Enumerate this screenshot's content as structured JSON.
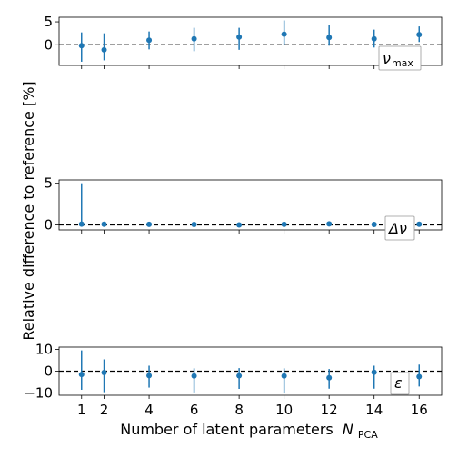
{
  "chart_data": {
    "type": "scatter",
    "ylabel": "Relative difference to reference [%]",
    "xlabel": "Number of latent parameters",
    "xlabel_symbol": "N",
    "xlabel_subscript": "PCA",
    "x": [
      1,
      2,
      4,
      6,
      8,
      10,
      12,
      14,
      16
    ],
    "xticks": [
      "1",
      "2",
      "4",
      "6",
      "8",
      "10",
      "12",
      "14",
      "16"
    ],
    "xlim": [
      0.0,
      17.0
    ],
    "reference_line": 0,
    "color": "#1f77b4",
    "panels": [
      {
        "legend_symbol": "ν",
        "legend_subscript": "max",
        "ylim": [
          -4.5,
          6.0
        ],
        "yticks": [
          0,
          5
        ],
        "yticklabels": [
          "0",
          "5"
        ],
        "y": [
          -0.2,
          -1.1,
          1.0,
          1.3,
          1.7,
          2.3,
          1.6,
          1.3,
          2.2
        ],
        "err_low": [
          3.5,
          2.3,
          2.0,
          2.7,
          2.8,
          2.4,
          1.8,
          1.9,
          1.6
        ],
        "err_high": [
          2.9,
          3.6,
          1.9,
          2.4,
          2.0,
          3.0,
          2.7,
          2.0,
          1.8
        ]
      },
      {
        "legend_symbol": "Δν",
        "legend_subscript": "",
        "ylim": [
          -0.6,
          5.4
        ],
        "yticks": [
          0,
          5
        ],
        "yticklabels": [
          "0",
          "5"
        ],
        "y": [
          0.1,
          0.08,
          0.07,
          0.05,
          0.0,
          0.07,
          0.12,
          0.06,
          0.08
        ],
        "err_low": [
          0.1,
          0.05,
          0.05,
          0.05,
          0.05,
          0.05,
          0.05,
          0.05,
          0.05
        ],
        "err_high": [
          4.9,
          0.12,
          0.1,
          0.08,
          0.06,
          0.1,
          0.12,
          0.1,
          0.1
        ]
      },
      {
        "legend_symbol": "ε",
        "legend_subscript": "",
        "ylim": [
          -11.0,
          11.0
        ],
        "yticks": [
          -10,
          0,
          10
        ],
        "yticklabels": [
          "−10",
          "0",
          "10"
        ],
        "y": [
          -1.5,
          -0.6,
          -2.0,
          -2.2,
          -2.1,
          -2.2,
          -3.0,
          -0.5,
          -2.5
        ],
        "err_low": [
          7.0,
          9.0,
          5.5,
          7.5,
          6.0,
          8.0,
          5.0,
          7.5,
          4.5
        ],
        "err_high": [
          11.0,
          6.0,
          4.5,
          3.5,
          3.5,
          3.5,
          4.0,
          3.0,
          5.5
        ]
      }
    ]
  }
}
